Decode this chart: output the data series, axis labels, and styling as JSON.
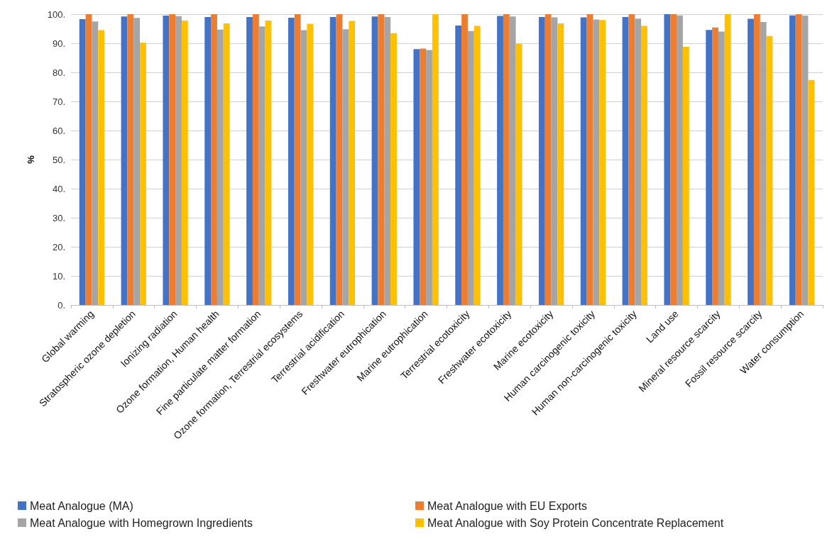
{
  "chart_data": {
    "type": "bar",
    "ylabel": "%",
    "categories": [
      "Global warming",
      "Stratospheric ozone depletion",
      "Ionizing radiation",
      "Ozone formation, Human health",
      "Fine particulate matter formation",
      "Ozone formation, Terrestrial ecosystems",
      "Terrestrial acidification",
      "Freshwater eutrophication",
      "Marine eutrophication",
      "Terrestrial ecotoxicity",
      "Freshwater ecotoxicity",
      "Marine ecotoxicity",
      "Human carcinogenic toxicity",
      "Human non-carcinogenic toxicity",
      "Land use",
      "Mineral resource scarcity",
      "Fossil resource scarcity",
      "Water consumption"
    ],
    "series": [
      {
        "name": "Meat Analogue (MA)",
        "color": "#4472c4",
        "values": [
          98.3,
          99.2,
          99.5,
          99,
          99,
          98.8,
          99,
          99.2,
          88,
          96.1,
          99.4,
          99,
          98.9,
          99,
          100,
          94.6,
          98.4,
          99.6
        ]
      },
      {
        "name": "Meat Analogue with EU Exports",
        "color": "#ed7d31",
        "values": [
          100,
          100,
          100,
          100,
          100,
          100,
          100,
          100,
          88.2,
          100,
          100,
          100,
          100,
          100,
          100,
          95.4,
          100,
          100
        ]
      },
      {
        "name": "Meat Analogue with Homegrown Ingredients",
        "color": "#a5a5a5",
        "values": [
          97.5,
          98.7,
          99.3,
          94.7,
          95.8,
          94.5,
          94.8,
          99,
          87.7,
          94.2,
          99.2,
          98.9,
          98.2,
          98.5,
          99.6,
          94,
          97.3,
          99.5
        ]
      },
      {
        "name": "Meat Analogue with Soy Protein Concentrate Replacement",
        "color": "#ffc000",
        "values": [
          94.5,
          90.2,
          97.8,
          96.8,
          97.8,
          96.7,
          97.7,
          93.5,
          100,
          96,
          89.8,
          96.8,
          98,
          96,
          88.8,
          100,
          92.5,
          77.4
        ]
      }
    ],
    "ylim": [
      0,
      100
    ],
    "yticks": [
      {
        "value": 0,
        "label": "0."
      },
      {
        "value": 10,
        "label": "10."
      },
      {
        "value": 20,
        "label": "20."
      },
      {
        "value": 30,
        "label": "30."
      },
      {
        "value": 40,
        "label": "40."
      },
      {
        "value": 50,
        "label": "50."
      },
      {
        "value": 60,
        "label": "60."
      },
      {
        "value": 70,
        "label": "70."
      },
      {
        "value": 80,
        "label": "80."
      },
      {
        "value": 90,
        "label": "90."
      },
      {
        "value": 100,
        "label": "100."
      }
    ],
    "grid": "y",
    "legend": "bottom"
  }
}
